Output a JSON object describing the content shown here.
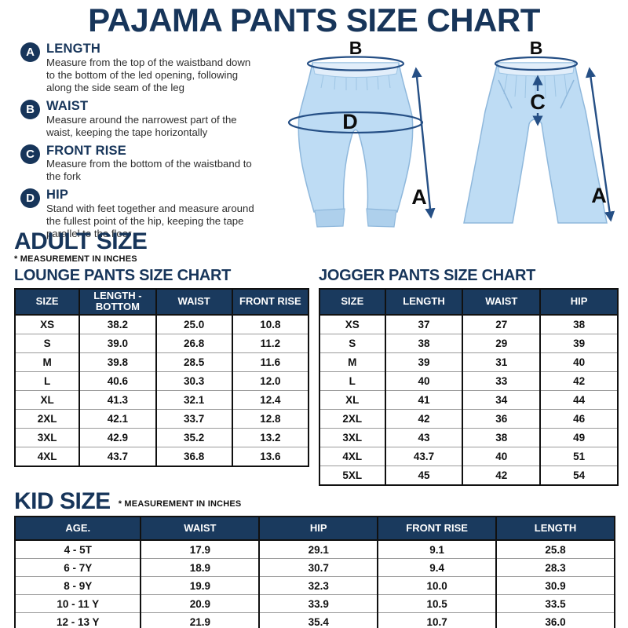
{
  "title": "PAJAMA PANTS SIZE CHART",
  "colors": {
    "navy": "#17355a",
    "table_header_navy": "#1a3a5e",
    "pants_blue": "#bedcf4",
    "arrow_blue": "#254f85"
  },
  "measurement_guide": [
    {
      "letter": "A",
      "label": "LENGTH",
      "description": "Measure from the top of the waistband down to the bottom of the led opening, following along the side seam of the leg"
    },
    {
      "letter": "B",
      "label": "WAIST",
      "description": "Measure around the narrowest part of the waist, keeping the tape horizontally"
    },
    {
      "letter": "C",
      "label": "FRONT RISE",
      "description": "Measure from the bottom of the waistband to the fork"
    },
    {
      "letter": "D",
      "label": "HIP",
      "description": "Stand with feet together and measure around the fullest point of the hip, keeping the tape parallel to the floor"
    }
  ],
  "figures": {
    "jogger": {
      "waist_label": "B",
      "hip_label": "D",
      "length_label": "A"
    },
    "lounge": {
      "waist_label": "B",
      "front_rise_label": "C",
      "length_label": "A"
    }
  },
  "adult_section": {
    "heading": "ADULT SIZE",
    "note": "* MEASUREMENT IN INCHES",
    "lounge_table": {
      "title": "LOUNGE PANTS SIZE CHART",
      "headers": [
        "SIZE",
        "LENGTH - BOTTOM",
        "WAIST",
        "FRONT RISE"
      ],
      "rows": [
        [
          "XS",
          "38.2",
          "25.0",
          "10.8"
        ],
        [
          "S",
          "39.0",
          "26.8",
          "11.2"
        ],
        [
          "M",
          "39.8",
          "28.5",
          "11.6"
        ],
        [
          "L",
          "40.6",
          "30.3",
          "12.0"
        ],
        [
          "XL",
          "41.3",
          "32.1",
          "12.4"
        ],
        [
          "2XL",
          "42.1",
          "33.7",
          "12.8"
        ],
        [
          "3XL",
          "42.9",
          "35.2",
          "13.2"
        ],
        [
          "4XL",
          "43.7",
          "36.8",
          "13.6"
        ]
      ]
    },
    "jogger_table": {
      "title": "JOGGER PANTS SIZE CHART",
      "headers": [
        "SIZE",
        "LENGTH",
        "WAIST",
        "HIP"
      ],
      "rows": [
        [
          "XS",
          "37",
          "27",
          "38"
        ],
        [
          "S",
          "38",
          "29",
          "39"
        ],
        [
          "M",
          "39",
          "31",
          "40"
        ],
        [
          "L",
          "40",
          "33",
          "42"
        ],
        [
          "XL",
          "41",
          "34",
          "44"
        ],
        [
          "2XL",
          "42",
          "36",
          "46"
        ],
        [
          "3XL",
          "43",
          "38",
          "49"
        ],
        [
          "4XL",
          "43.7",
          "40",
          "51"
        ],
        [
          "5XL",
          "45",
          "42",
          "54"
        ]
      ]
    }
  },
  "kid_section": {
    "heading": "KID SIZE",
    "note": "* MEASUREMENT IN INCHES",
    "table": {
      "headers": [
        "AGE.",
        "WAIST",
        "HIP",
        "FRONT RISE",
        "LENGTH"
      ],
      "rows": [
        [
          "4 - 5T",
          "17.9",
          "29.1",
          "9.1",
          "25.8"
        ],
        [
          "6 - 7Y",
          "18.9",
          "30.7",
          "9.4",
          "28.3"
        ],
        [
          "8 - 9Y",
          "19.9",
          "32.3",
          "10.0",
          "30.9"
        ],
        [
          "10 - 11 Y",
          "20.9",
          "33.9",
          "10.5",
          "33.5"
        ],
        [
          "12 - 13 Y",
          "21.9",
          "35.4",
          "10.7",
          "36.0"
        ]
      ]
    }
  }
}
